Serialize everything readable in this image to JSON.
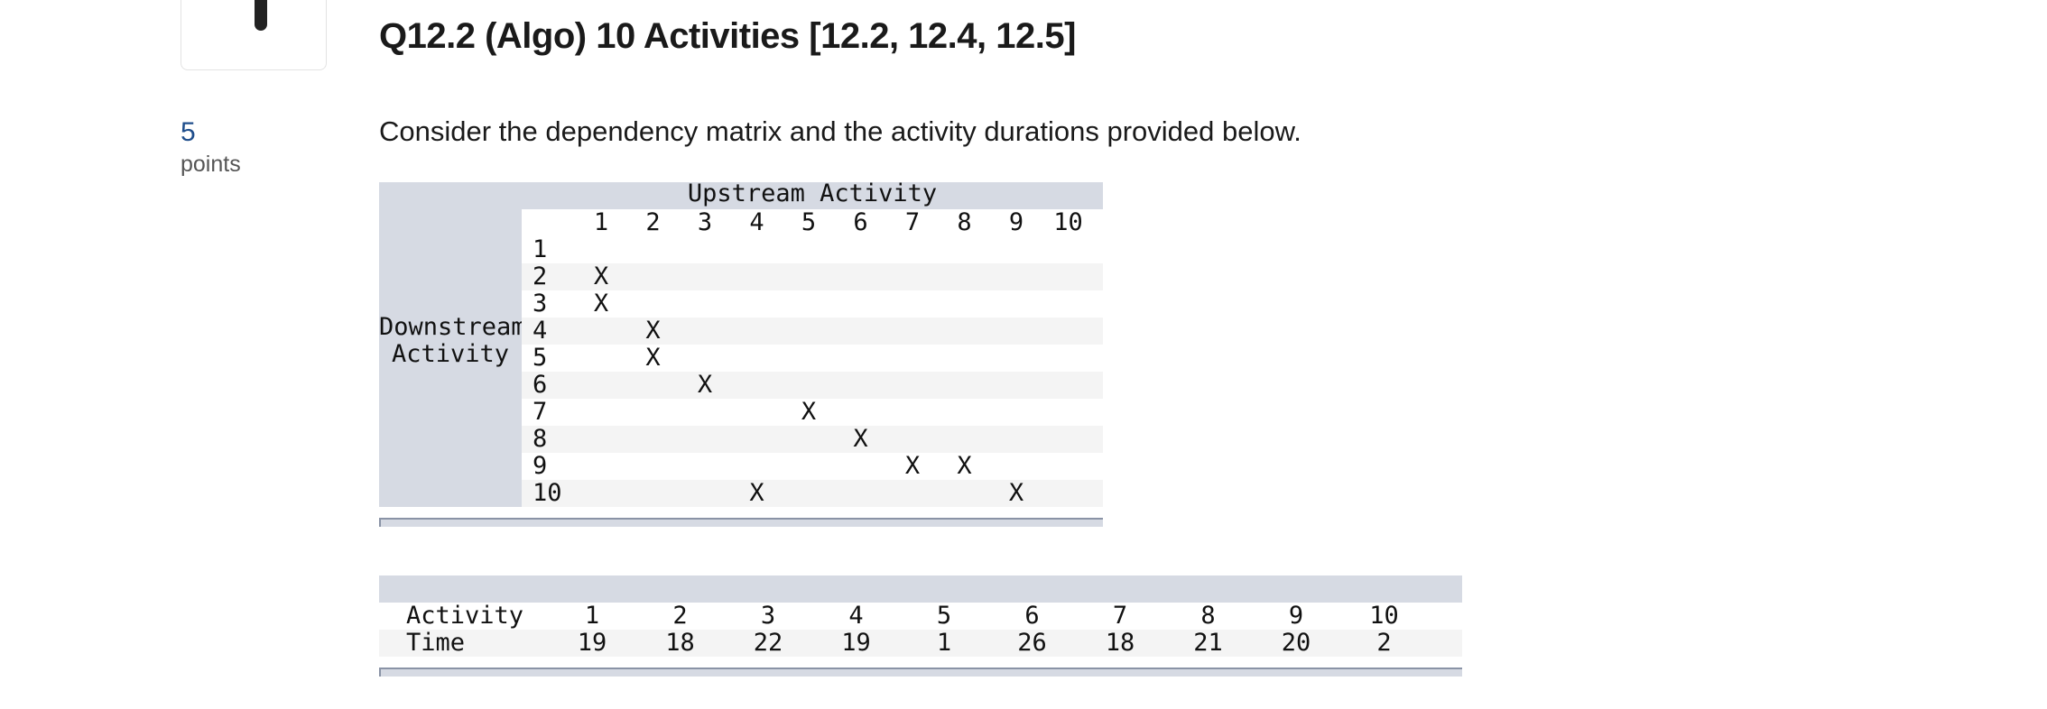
{
  "question": {
    "title": "Q12.2 (Algo) 10 Activities [12.2, 12.4, 12.5]",
    "points_value": "5",
    "points_label": "points",
    "prompt": "Consider the dependency matrix and the activity durations provided below."
  },
  "matrix": {
    "upstream_title": "Upstream Activity",
    "downstream_title_line1": "Downstream",
    "downstream_title_line2": "Activity",
    "columns": [
      "1",
      "2",
      "3",
      "4",
      "5",
      "6",
      "7",
      "8",
      "9",
      "10"
    ],
    "rows": [
      {
        "label": "1",
        "deps": [
          "",
          "",
          "",
          "",
          "",
          "",
          "",
          "",
          "",
          ""
        ]
      },
      {
        "label": "2",
        "deps": [
          "X",
          "",
          "",
          "",
          "",
          "",
          "",
          "",
          "",
          ""
        ]
      },
      {
        "label": "3",
        "deps": [
          "X",
          "",
          "",
          "",
          "",
          "",
          "",
          "",
          "",
          ""
        ]
      },
      {
        "label": "4",
        "deps": [
          "",
          "X",
          "",
          "",
          "",
          "",
          "",
          "",
          "",
          ""
        ]
      },
      {
        "label": "5",
        "deps": [
          "",
          "X",
          "",
          "",
          "",
          "",
          "",
          "",
          "",
          ""
        ]
      },
      {
        "label": "6",
        "deps": [
          "",
          "",
          "X",
          "",
          "",
          "",
          "",
          "",
          "",
          ""
        ]
      },
      {
        "label": "7",
        "deps": [
          "",
          "",
          "",
          "",
          "X",
          "",
          "",
          "",
          "",
          ""
        ]
      },
      {
        "label": "8",
        "deps": [
          "",
          "",
          "",
          "",
          "",
          "X",
          "",
          "",
          "",
          ""
        ]
      },
      {
        "label": "9",
        "deps": [
          "",
          "",
          "",
          "",
          "",
          "",
          "X",
          "X",
          "",
          ""
        ]
      },
      {
        "label": "10",
        "deps": [
          "",
          "",
          "",
          "X",
          "",
          "",
          "",
          "",
          "X",
          ""
        ]
      }
    ]
  },
  "durations": {
    "activity_label": "Activity",
    "time_label": "Time",
    "activities": [
      "1",
      "2",
      "3",
      "4",
      "5",
      "6",
      "7",
      "8",
      "9",
      "10"
    ],
    "times": [
      "19",
      "18",
      "22",
      "19",
      "1",
      "26",
      "18",
      "21",
      "20",
      "2"
    ]
  },
  "colors": {
    "header_band": "#d6dae3",
    "stripe": "#f4f4f4",
    "points_accent": "#1f4e8c"
  }
}
